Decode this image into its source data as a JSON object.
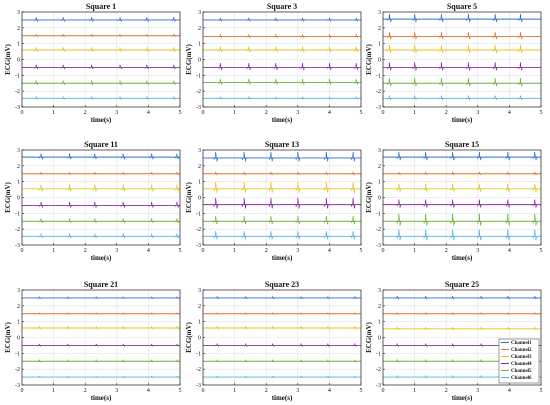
{
  "chart_data": [
    {
      "type": "line",
      "title": "Square 1",
      "xlabel": "time(s)",
      "ylabel": "ECG(mV)",
      "xlim": [
        0,
        5
      ],
      "ylim": [
        -3,
        3
      ],
      "xticks": [
        "0",
        "1",
        "2",
        "3",
        "4",
        "5"
      ],
      "yticks": [
        "-3",
        "-2",
        "-1",
        "0",
        "1",
        "2",
        "3"
      ],
      "grid": true,
      "beat_times": [
        0.45,
        1.3,
        2.2,
        3.1,
        3.95,
        4.8
      ],
      "series": [
        {
          "name": "Channel1",
          "baseline": 2.5,
          "spike": 0.15,
          "color": "#2a6fd6"
        },
        {
          "name": "Channel2",
          "baseline": 1.5,
          "spike": 0.08,
          "color": "#e2702a"
        },
        {
          "name": "Channel3",
          "baseline": 0.6,
          "spike": 0.15,
          "color": "#e8c21c"
        },
        {
          "name": "Channel4",
          "baseline": -0.5,
          "spike": 0.15,
          "color": "#8c2fa0"
        },
        {
          "name": "Channel5",
          "baseline": -1.5,
          "spike": 0.15,
          "color": "#6ab43a"
        },
        {
          "name": "Channel6",
          "baseline": -2.45,
          "spike": 0.1,
          "color": "#4fb3e6"
        }
      ]
    },
    {
      "type": "line",
      "title": "Square 3",
      "xlabel": "time(s)",
      "ylabel": "ECG(mV)",
      "xlim": [
        0,
        5
      ],
      "ylim": [
        -3,
        3
      ],
      "xticks": [
        "0",
        "1",
        "2",
        "3",
        "4",
        "5"
      ],
      "yticks": [
        "-3",
        "-2",
        "-1",
        "0",
        "1",
        "2",
        "3"
      ],
      "grid": true,
      "beat_times": [
        0.55,
        1.45,
        2.3,
        3.15,
        4.0,
        4.85
      ],
      "series": [
        {
          "name": "Channel1",
          "baseline": 2.5,
          "spike": 0.12,
          "color": "#2a6fd6"
        },
        {
          "name": "Channel2",
          "baseline": 1.45,
          "spike": 0.12,
          "color": "#e2702a"
        },
        {
          "name": "Channel3",
          "baseline": 0.6,
          "spike": 0.2,
          "color": "#e8c21c"
        },
        {
          "name": "Channel4",
          "baseline": -0.5,
          "spike": 0.25,
          "color": "#8c2fa0"
        },
        {
          "name": "Channel5",
          "baseline": -1.45,
          "spike": 0.2,
          "color": "#6ab43a"
        },
        {
          "name": "Channel6",
          "baseline": -2.45,
          "spike": 0.08,
          "color": "#4fb3e6"
        }
      ]
    },
    {
      "type": "line",
      "title": "Square 5",
      "xlabel": "time(s)",
      "ylabel": "ECG(mV)",
      "xlim": [
        0,
        5
      ],
      "ylim": [
        -3,
        3
      ],
      "xticks": [
        "0",
        "1",
        "2",
        "3",
        "4",
        "5"
      ],
      "yticks": [
        "-3",
        "-2",
        "-1",
        "0",
        "1",
        "2",
        "3"
      ],
      "grid": true,
      "beat_times": [
        0.2,
        1.0,
        1.85,
        2.7,
        3.55,
        4.35
      ],
      "series": [
        {
          "name": "Channel1",
          "baseline": 2.55,
          "spike": 0.3,
          "color": "#2a6fd6"
        },
        {
          "name": "Channel2",
          "baseline": 1.45,
          "spike": 0.25,
          "color": "#e2702a"
        },
        {
          "name": "Channel3",
          "baseline": 0.6,
          "spike": 0.3,
          "color": "#e8c21c"
        },
        {
          "name": "Channel4",
          "baseline": -0.5,
          "spike": 0.3,
          "color": "#8c2fa0"
        },
        {
          "name": "Channel5",
          "baseline": -1.5,
          "spike": 0.3,
          "color": "#6ab43a"
        },
        {
          "name": "Channel6",
          "baseline": -2.45,
          "spike": 0.15,
          "color": "#4fb3e6"
        }
      ]
    },
    {
      "type": "line",
      "title": "Square 11",
      "xlabel": "time(s)",
      "ylabel": "ECG(mV)",
      "xlim": [
        0,
        5
      ],
      "ylim": [
        -3,
        3
      ],
      "xticks": [
        "0",
        "1",
        "2",
        "3",
        "4",
        "5"
      ],
      "yticks": [
        "-3",
        "-2",
        "-1",
        "0",
        "1",
        "2",
        "3"
      ],
      "grid": true,
      "beat_times": [
        0.6,
        1.5,
        2.3,
        3.2,
        4.1,
        4.9
      ],
      "series": [
        {
          "name": "Channel1",
          "baseline": 2.55,
          "spike": 0.2,
          "color": "#2a6fd6"
        },
        {
          "name": "Channel2",
          "baseline": 1.5,
          "spike": 0.08,
          "color": "#e2702a"
        },
        {
          "name": "Channel3",
          "baseline": 0.55,
          "spike": 0.25,
          "color": "#e8c21c"
        },
        {
          "name": "Channel4",
          "baseline": -0.5,
          "spike": 0.2,
          "color": "#8c2fa0"
        },
        {
          "name": "Channel5",
          "baseline": -1.5,
          "spike": 0.15,
          "color": "#6ab43a"
        },
        {
          "name": "Channel6",
          "baseline": -2.45,
          "spike": 0.15,
          "color": "#4fb3e6"
        }
      ]
    },
    {
      "type": "line",
      "title": "Square 13",
      "xlabel": "time(s)",
      "ylabel": "ECG(mV)",
      "xlim": [
        0,
        5
      ],
      "ylim": [
        -3,
        3
      ],
      "xticks": [
        "0",
        "1",
        "2",
        "3",
        "4",
        "5"
      ],
      "yticks": [
        "-3",
        "-2",
        "-1",
        "0",
        "1",
        "2",
        "3"
      ],
      "grid": true,
      "beat_times": [
        0.4,
        1.3,
        2.15,
        3.0,
        3.9,
        4.75
      ],
      "series": [
        {
          "name": "Channel1",
          "baseline": 2.5,
          "spike": 0.35,
          "color": "#2a6fd6"
        },
        {
          "name": "Channel2",
          "baseline": 1.5,
          "spike": 0.1,
          "color": "#e2702a"
        },
        {
          "name": "Channel3",
          "baseline": 0.55,
          "spike": 0.4,
          "color": "#e8c21c"
        },
        {
          "name": "Channel4",
          "baseline": -0.45,
          "spike": 0.4,
          "color": "#8c2fa0"
        },
        {
          "name": "Channel5",
          "baseline": -1.5,
          "spike": 0.3,
          "color": "#6ab43a"
        },
        {
          "name": "Channel6",
          "baseline": -2.45,
          "spike": 0.3,
          "color": "#4fb3e6"
        }
      ]
    },
    {
      "type": "line",
      "title": "Square 15",
      "xlabel": "time(s)",
      "ylabel": "ECG(mV)",
      "xlim": [
        0,
        5
      ],
      "ylim": [
        -3,
        3
      ],
      "xticks": [
        "0",
        "1",
        "2",
        "3",
        "4",
        "5"
      ],
      "yticks": [
        "-3",
        "-2",
        "-1",
        "0",
        "1",
        "2",
        "3"
      ],
      "grid": true,
      "beat_times": [
        0.5,
        1.35,
        2.2,
        3.05,
        3.95,
        4.8
      ],
      "series": [
        {
          "name": "Channel1",
          "baseline": 2.55,
          "spike": 0.3,
          "color": "#2a6fd6"
        },
        {
          "name": "Channel2",
          "baseline": 1.5,
          "spike": 0.1,
          "color": "#e2702a"
        },
        {
          "name": "Channel3",
          "baseline": 0.55,
          "spike": 0.3,
          "color": "#e8c21c"
        },
        {
          "name": "Channel4",
          "baseline": -0.45,
          "spike": 0.3,
          "color": "#8c2fa0"
        },
        {
          "name": "Channel5",
          "baseline": -1.5,
          "spike": 0.45,
          "color": "#6ab43a"
        },
        {
          "name": "Channel6",
          "baseline": -2.45,
          "spike": 0.4,
          "color": "#4fb3e6"
        }
      ]
    },
    {
      "type": "line",
      "title": "Square 21",
      "xlabel": "time(s)",
      "ylabel": "ECG(mV)",
      "xlim": [
        0,
        5
      ],
      "ylim": [
        -3,
        3
      ],
      "xticks": [
        "0",
        "1",
        "2",
        "3",
        "4",
        "5"
      ],
      "yticks": [
        "-3",
        "-2",
        "-1",
        "0",
        "1",
        "2",
        "3"
      ],
      "grid": true,
      "beat_times": [
        0.55,
        1.45,
        2.35,
        3.2,
        4.1,
        4.9
      ],
      "series": [
        {
          "name": "Channel1",
          "baseline": 2.5,
          "spike": 0.06,
          "color": "#2a6fd6"
        },
        {
          "name": "Channel2",
          "baseline": 1.5,
          "spike": 0.05,
          "color": "#e2702a"
        },
        {
          "name": "Channel3",
          "baseline": 0.6,
          "spike": 0.1,
          "color": "#e8c21c"
        },
        {
          "name": "Channel4",
          "baseline": -0.5,
          "spike": 0.08,
          "color": "#8c2fa0"
        },
        {
          "name": "Channel5",
          "baseline": -1.5,
          "spike": 0.08,
          "color": "#6ab43a"
        },
        {
          "name": "Channel6",
          "baseline": -2.5,
          "spike": 0.05,
          "color": "#4fb3e6"
        }
      ]
    },
    {
      "type": "line",
      "title": "Square 23",
      "xlabel": "time(s)",
      "ylabel": "ECG(mV)",
      "xlim": [
        0,
        5
      ],
      "ylim": [
        -3,
        3
      ],
      "xticks": [
        "0",
        "1",
        "2",
        "3",
        "4",
        "5"
      ],
      "yticks": [
        "-3",
        "-2",
        "-1",
        "0",
        "1",
        "2",
        "3"
      ],
      "grid": true,
      "beat_times": [
        0.45,
        1.35,
        2.2,
        3.1,
        3.95,
        4.8
      ],
      "series": [
        {
          "name": "Channel1",
          "baseline": 2.5,
          "spike": 0.08,
          "color": "#2a6fd6"
        },
        {
          "name": "Channel2",
          "baseline": 1.5,
          "spike": 0.05,
          "color": "#e2702a"
        },
        {
          "name": "Channel3",
          "baseline": 0.6,
          "spike": 0.1,
          "color": "#e8c21c"
        },
        {
          "name": "Channel4",
          "baseline": -0.5,
          "spike": 0.1,
          "color": "#8c2fa0"
        },
        {
          "name": "Channel5",
          "baseline": -1.5,
          "spike": 0.08,
          "color": "#6ab43a"
        },
        {
          "name": "Channel6",
          "baseline": -2.5,
          "spike": 0.06,
          "color": "#4fb3e6"
        }
      ]
    },
    {
      "type": "line",
      "title": "Square 25",
      "xlabel": "time(s)",
      "ylabel": "ECG(mV)",
      "xlim": [
        0,
        5
      ],
      "ylim": [
        -3,
        3
      ],
      "xticks": [
        "0",
        "1",
        "2",
        "3",
        "4",
        "5"
      ],
      "yticks": [
        "-3",
        "-2",
        "-1",
        "0",
        "1",
        "2",
        "3"
      ],
      "grid": true,
      "legend": "bottom-right",
      "beat_times": [
        0.45,
        1.35,
        2.2,
        3.1,
        3.95,
        4.8
      ],
      "series": [
        {
          "name": "Channel1",
          "baseline": 2.5,
          "spike": 0.1,
          "color": "#2a6fd6"
        },
        {
          "name": "Channel2",
          "baseline": 1.5,
          "spike": 0.06,
          "color": "#e2702a"
        },
        {
          "name": "Channel3",
          "baseline": 0.55,
          "spike": 0.1,
          "color": "#e8c21c"
        },
        {
          "name": "Channel4",
          "baseline": -0.5,
          "spike": 0.1,
          "color": "#8c2fa0"
        },
        {
          "name": "Channel5",
          "baseline": -1.5,
          "spike": 0.1,
          "color": "#6ab43a"
        },
        {
          "name": "Channel6",
          "baseline": -2.5,
          "spike": 0.08,
          "color": "#4fb3e6"
        }
      ]
    }
  ]
}
